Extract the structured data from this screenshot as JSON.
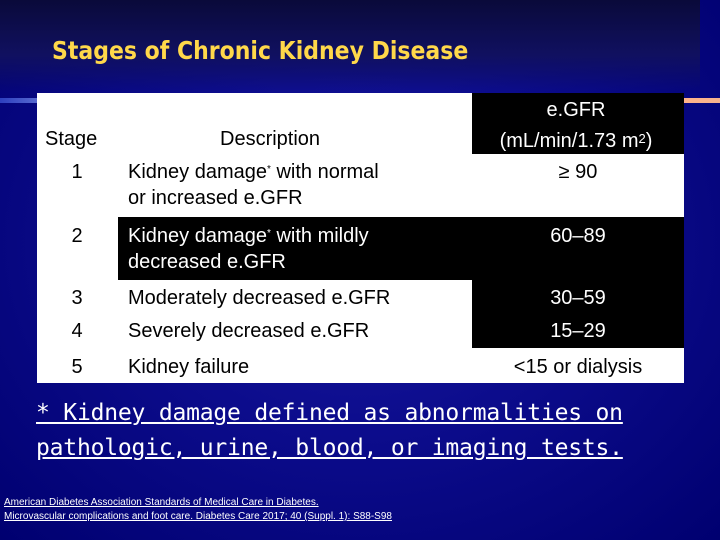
{
  "slide": {
    "title": "Stages of Chronic Kidney Disease",
    "accent_color": "#ffd84a",
    "background_color": "#000080"
  },
  "table": {
    "headers": {
      "stage": "Stage",
      "description": "Description",
      "egfr_line1": "e.GFR",
      "egfr_line2_prefix": "(mL/min/1.73 m",
      "egfr_line2_sup": "2",
      "egfr_line2_suffix": ")"
    },
    "rows": [
      {
        "stage": "1",
        "desc_a": "Kidney damage",
        "asterisk": "*",
        "desc_b": " with normal",
        "desc_c": "or increased e.GFR",
        "egfr": "≥ 90"
      },
      {
        "stage": "2",
        "desc_a": "Kidney damage",
        "asterisk": "*",
        "desc_b": " with mildly",
        "desc_c": "decreased e.GFR",
        "egfr": "60–89"
      },
      {
        "stage": "3",
        "desc": "Moderately decreased e.GFR",
        "egfr": "30–59"
      },
      {
        "stage": "4",
        "desc": "Severely decreased e.GFR",
        "egfr": "15–29"
      },
      {
        "stage": "5",
        "desc": "Kidney failure",
        "egfr": "<15 or dialysis"
      }
    ]
  },
  "footnote": {
    "line1": "* Kidney damage defined as abnormalities on",
    "line2": "pathologic, urine, blood, or imaging tests."
  },
  "citation": {
    "line1": "American Diabetes Association Standards of Medical Care in Diabetes.",
    "line2": "Microvascular complications and foot care. Diabetes Care 2017; 40 (Suppl. 1): S88-S98"
  }
}
